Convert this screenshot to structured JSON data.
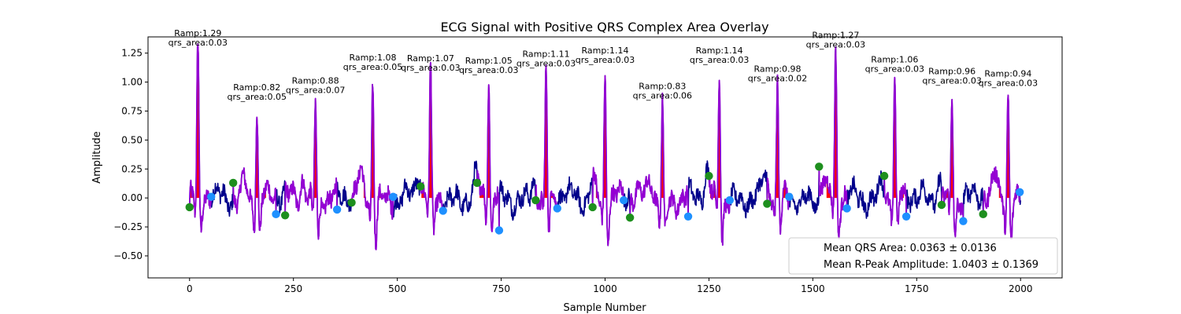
{
  "chart_data": {
    "type": "line",
    "title": "ECG Signal with Positive QRS Complex Area Overlay",
    "xlabel": "Sample Number",
    "ylabel": "Amplitude",
    "xlim": [
      -100,
      2100
    ],
    "ylim": [
      -0.69,
      1.39
    ],
    "xticks": [
      0,
      250,
      500,
      750,
      1000,
      1250,
      1500,
      1750,
      2000
    ],
    "xtick_labels": [
      "0",
      "250",
      "500",
      "750",
      "1000",
      "1250",
      "1500",
      "1750",
      "2000"
    ],
    "yticks": [
      -0.5,
      -0.25,
      0.0,
      0.25,
      0.5,
      0.75,
      1.0,
      1.25
    ],
    "ytick_labels": [
      "−0.50",
      "−0.25",
      "0.00",
      "0.25",
      "0.50",
      "0.75",
      "1.00",
      "1.25"
    ],
    "grid": false,
    "colors": {
      "signal": "#00008b",
      "qrs_segment": "#9400d3",
      "qrs_fill": "#ff0000",
      "onset": "#1e8f1e",
      "offset": "#1e90ff"
    },
    "beats": [
      {
        "onset": 0,
        "offset": 52,
        "peak_x": 20,
        "r_amp": 1.29,
        "qrs_area": 0.03,
        "onset_y": -0.08,
        "offset_y": 0.01,
        "annotation_lines": [
          "Ramp:1.29",
          "qrs_area:0.03"
        ]
      },
      {
        "onset": 105,
        "offset": 208,
        "peak_x": 162,
        "r_amp": 0.82,
        "qrs_area": 0.05,
        "onset_y": 0.13,
        "offset_y": -0.14,
        "annotation_lines": [
          "Ramp:0.82",
          "qrs_area:0.05"
        ]
      },
      {
        "onset": 230,
        "offset": 355,
        "peak_x": 303,
        "r_amp": 0.88,
        "qrs_area": 0.07,
        "onset_y": -0.15,
        "offset_y": -0.1,
        "annotation_lines": [
          "Ramp:0.88",
          "qrs_area:0.07"
        ]
      },
      {
        "onset": 390,
        "offset": 490,
        "peak_x": 441,
        "r_amp": 1.08,
        "qrs_area": 0.05,
        "onset_y": -0.04,
        "offset_y": 0.01,
        "annotation_lines": [
          "Ramp:1.08",
          "qrs_area:0.05"
        ]
      },
      {
        "onset": 556,
        "offset": 610,
        "peak_x": 580,
        "r_amp": 1.07,
        "qrs_area": 0.03,
        "onset_y": 0.1,
        "offset_y": -0.11,
        "annotation_lines": [
          "Ramp:1.07",
          "qrs_area:0.03"
        ]
      },
      {
        "onset": 692,
        "offset": 745,
        "peak_x": 720,
        "r_amp": 1.05,
        "qrs_area": 0.03,
        "onset_y": 0.13,
        "offset_y": -0.28,
        "annotation_lines": [
          "Ramp:1.05",
          "qrs_area:0.03"
        ]
      },
      {
        "onset": 833,
        "offset": 885,
        "peak_x": 858,
        "r_amp": 1.11,
        "qrs_area": 0.03,
        "onset_y": -0.02,
        "offset_y": -0.09,
        "annotation_lines": [
          "Ramp:1.11",
          "qrs_area:0.03"
        ]
      },
      {
        "onset": 970,
        "offset": 1045,
        "peak_x": 1000,
        "r_amp": 1.14,
        "qrs_area": 0.03,
        "onset_y": -0.08,
        "offset_y": -0.02,
        "annotation_lines": [
          "Ramp:1.14",
          "qrs_area:0.03"
        ]
      },
      {
        "onset": 1060,
        "offset": 1200,
        "peak_x": 1138,
        "r_amp": 0.83,
        "qrs_area": 0.06,
        "onset_y": -0.17,
        "offset_y": -0.16,
        "annotation_lines": [
          "Ramp:0.83",
          "qrs_area:0.06"
        ]
      },
      {
        "onset": 1250,
        "offset": 1300,
        "peak_x": 1275,
        "r_amp": 1.14,
        "qrs_area": 0.03,
        "onset_y": 0.19,
        "offset_y": -0.02,
        "annotation_lines": [
          "Ramp:1.14",
          "qrs_area:0.03"
        ]
      },
      {
        "onset": 1390,
        "offset": 1443,
        "peak_x": 1415,
        "r_amp": 0.98,
        "qrs_area": 0.02,
        "onset_y": -0.05,
        "offset_y": 0.01,
        "annotation_lines": [
          "Ramp:0.98",
          "qrs_area:0.02"
        ]
      },
      {
        "onset": 1515,
        "offset": 1582,
        "peak_x": 1555,
        "r_amp": 1.27,
        "qrs_area": 0.03,
        "onset_y": 0.27,
        "offset_y": -0.09,
        "annotation_lines": [
          "Ramp:1.27",
          "qrs_area:0.03"
        ]
      },
      {
        "onset": 1672,
        "offset": 1725,
        "peak_x": 1697,
        "r_amp": 1.06,
        "qrs_area": 0.03,
        "onset_y": 0.19,
        "offset_y": -0.16,
        "annotation_lines": [
          "Ramp:1.06",
          "qrs_area:0.03"
        ]
      },
      {
        "onset": 1810,
        "offset": 1862,
        "peak_x": 1835,
        "r_amp": 0.96,
        "qrs_area": 0.03,
        "onset_y": -0.06,
        "offset_y": -0.2,
        "annotation_lines": [
          "Ramp:0.96",
          "qrs_area:0.03"
        ]
      },
      {
        "onset": 1910,
        "offset": 1998,
        "peak_x": 1970,
        "r_amp": 0.94,
        "qrs_area": 0.03,
        "onset_y": -0.14,
        "offset_y": 0.05,
        "annotation_lines": [
          "Ramp:0.94",
          "qrs_area:0.03"
        ]
      }
    ],
    "legend": {
      "placement": "lower-right",
      "entries": [
        "Mean QRS Area: 0.0363 ± 0.0136",
        "Mean R-Peak Amplitude: 1.0403 ± 0.1369"
      ]
    }
  }
}
